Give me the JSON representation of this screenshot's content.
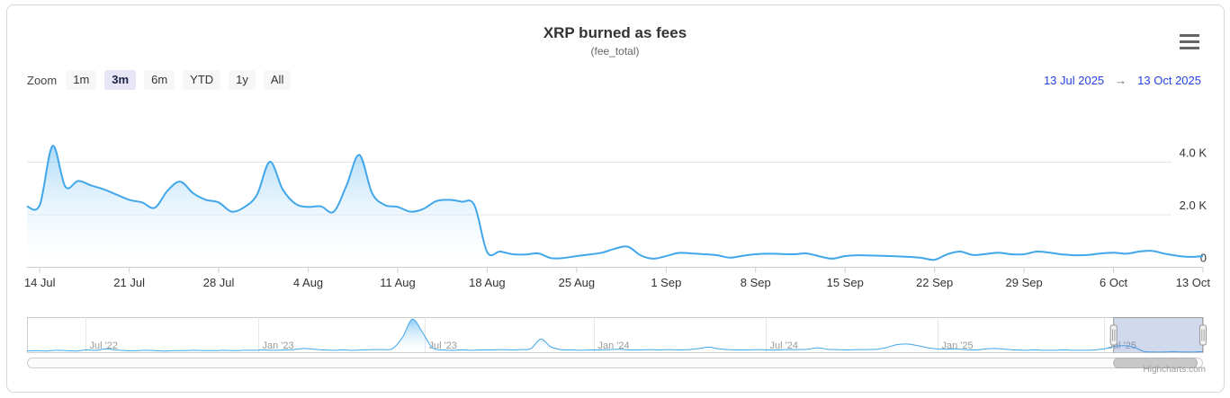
{
  "header": {
    "title": "XRP burned as fees",
    "subtitle": "(fee_total)"
  },
  "range_selector": {
    "zoom_label": "Zoom",
    "buttons": [
      "1m",
      "3m",
      "6m",
      "YTD",
      "1y",
      "All"
    ],
    "selected": "3m",
    "from_date": "13 Jul 2025",
    "to_date": "13 Oct 2025",
    "arrow": "→"
  },
  "chart_data": {
    "type": "area",
    "title": "XRP burned as fees",
    "subtitle": "(fee_total)",
    "x_start": "13 Jul 2025",
    "x_end": "13 Oct 2025",
    "x_interval": "daily",
    "series": [
      {
        "name": "fee_total",
        "values": [
          2300,
          2350,
          4600,
          3050,
          3270,
          3100,
          2950,
          2750,
          2550,
          2450,
          2250,
          2900,
          3240,
          2800,
          2550,
          2450,
          2100,
          2270,
          2750,
          4000,
          2950,
          2400,
          2280,
          2300,
          2100,
          3100,
          4260,
          2800,
          2350,
          2280,
          2100,
          2200,
          2500,
          2550,
          2480,
          2350,
          560,
          580,
          480,
          470,
          510,
          330,
          340,
          410,
          470,
          540,
          690,
          770,
          440,
          310,
          410,
          530,
          510,
          480,
          440,
          350,
          420,
          480,
          500,
          490,
          480,
          510,
          400,
          310,
          410,
          440,
          430,
          420,
          400,
          380,
          340,
          270,
          480,
          580,
          450,
          490,
          540,
          480,
          480,
          580,
          540,
          470,
          440,
          450,
          510,
          540,
          500,
          580,
          610,
          500,
          420,
          380,
          410
        ]
      }
    ],
    "xticks": [
      {
        "label": "14 Jul",
        "index": 1
      },
      {
        "label": "21 Jul",
        "index": 8
      },
      {
        "label": "28 Jul",
        "index": 15
      },
      {
        "label": "4 Aug",
        "index": 22
      },
      {
        "label": "11 Aug",
        "index": 29
      },
      {
        "label": "18 Aug",
        "index": 36
      },
      {
        "label": "25 Aug",
        "index": 43
      },
      {
        "label": "1 Sep",
        "index": 50
      },
      {
        "label": "8 Sep",
        "index": 57
      },
      {
        "label": "15 Sep",
        "index": 64
      },
      {
        "label": "22 Sep",
        "index": 71
      },
      {
        "label": "29 Sep",
        "index": 78
      },
      {
        "label": "6 Oct",
        "index": 85
      },
      {
        "label": "13 Oct",
        "index": 92
      }
    ],
    "yticks": [
      {
        "label": "0",
        "value": 0
      },
      {
        "label": "2.0 K",
        "value": 2000
      },
      {
        "label": "4.0 K",
        "value": 4000
      }
    ],
    "ylim": [
      0,
      6200
    ],
    "grid": true,
    "legend": false
  },
  "navigator": {
    "description": "full-history overview, approx May 2022 - Oct 2025, values in % of navigator height",
    "ticks": [
      {
        "label": "Jul '22",
        "pos": 0.05
      },
      {
        "label": "Jan '23",
        "pos": 0.197
      },
      {
        "label": "Jul '23",
        "pos": 0.338
      },
      {
        "label": "Jan '24",
        "pos": 0.482
      },
      {
        "label": "Jul '24",
        "pos": 0.628
      },
      {
        "label": "Jan '25",
        "pos": 0.774
      },
      {
        "label": "Jul '25",
        "pos": 0.916
      }
    ],
    "values_pct": [
      6,
      7,
      6,
      8,
      7,
      6,
      9,
      8,
      12,
      9,
      7,
      7,
      8,
      7,
      6,
      7,
      7,
      8,
      7,
      7,
      8,
      7,
      8,
      8,
      9,
      8,
      9,
      10,
      13,
      11,
      9,
      8,
      9,
      8,
      9,
      10,
      10,
      13,
      45,
      97,
      60,
      16,
      9,
      8,
      9,
      8,
      9,
      9,
      10,
      9,
      10,
      13,
      40,
      18,
      10,
      9,
      8,
      9,
      9,
      10,
      11,
      9,
      9,
      10,
      9,
      10,
      9,
      10,
      13,
      17,
      12,
      10,
      9,
      9,
      10,
      9,
      9,
      10,
      10,
      11,
      15,
      11,
      10,
      9,
      10,
      10,
      11,
      16,
      24,
      26,
      22,
      16,
      12,
      11,
      12,
      10,
      9,
      12,
      13,
      11,
      9,
      8,
      9,
      8,
      8,
      9,
      8,
      8,
      9,
      12,
      19,
      21,
      17,
      5,
      3,
      3,
      4,
      3,
      3,
      4
    ],
    "selected_range": [
      0.924,
      1.0
    ]
  },
  "scrollbar": {
    "thumb_range": [
      0.924,
      0.995
    ]
  },
  "credit": "Highcharts.com",
  "colors": {
    "series_line": "#41a7ea",
    "series_fill_top": "#54b2ef",
    "grid": "#e6e6e6",
    "axis_line": "#cccccc",
    "mask": "rgba(102,133,194,0.3)",
    "mask_outline": "#999999",
    "handle_fill": "#f2f2f2",
    "handle_stroke": "#999999",
    "scrollbar_thumb": "#c8c8c8",
    "button_selected_bg": "#e6e6f7",
    "date_text": "#2742e6",
    "axis_label": "#333333",
    "nav_label": "#999999"
  }
}
